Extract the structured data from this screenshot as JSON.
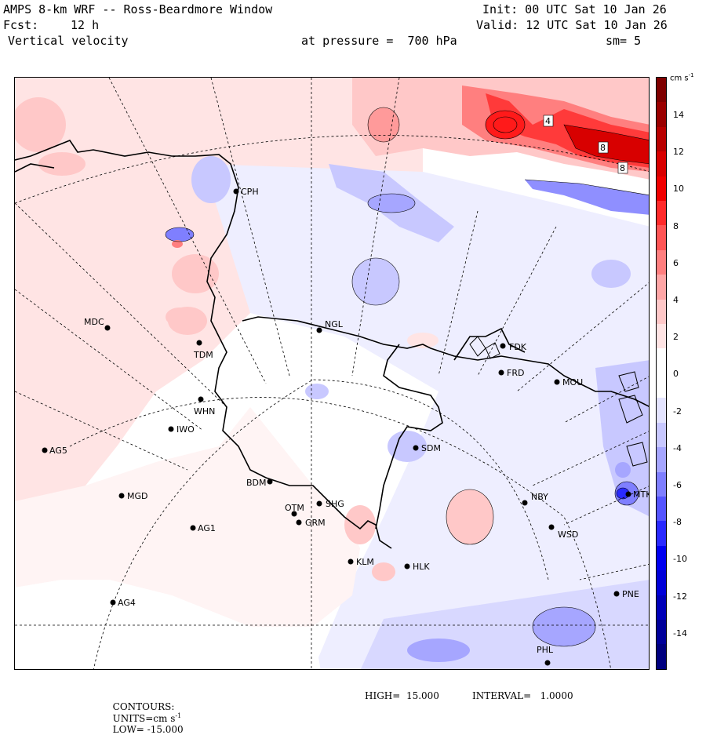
{
  "header": {
    "title": "AMPS 8-km WRF -- Ross-Beardmore Window",
    "forecast_label": "Fcst:",
    "forecast_hours": "12 h",
    "field": "Vertical velocity",
    "pressure_text": "at pressure =  700 hPa",
    "smoothing": "sm= 5",
    "init": "Init: 00 UTC Sat 10 Jan 26",
    "valid": "Valid: 12 UTC Sat 10 Jan 26"
  },
  "colorbar": {
    "units": "cm s",
    "units_exp": "-1",
    "ticks": [
      "14",
      "12",
      "10",
      "8",
      "6",
      "4",
      "2",
      "0",
      "-2",
      "-4",
      "-6",
      "-8",
      "-10",
      "-12",
      "-14"
    ],
    "colors": [
      "#7f0000",
      "#9a0000",
      "#b80000",
      "#d80000",
      "#f00000",
      "#ff2a2a",
      "#ff5555",
      "#ff7f7f",
      "#ffa6a6",
      "#ffc8c8",
      "#ffe4e4",
      "#ffffff",
      "#ffffff",
      "#e4e4ff",
      "#c8c8ff",
      "#a6a6ff",
      "#7f7fff",
      "#5555ff",
      "#2a2aff",
      "#0000f0",
      "#0000d8",
      "#0000b8",
      "#00009a",
      "#00007f"
    ]
  },
  "stations": [
    {
      "name": "CPH"
    },
    {
      "name": "NGL"
    },
    {
      "name": "MDC"
    },
    {
      "name": "TDM"
    },
    {
      "name": "WHN"
    },
    {
      "name": "IWO"
    },
    {
      "name": "AG5"
    },
    {
      "name": "FDK"
    },
    {
      "name": "FRD"
    },
    {
      "name": "MOU"
    },
    {
      "name": "SDM"
    },
    {
      "name": "BDM"
    },
    {
      "name": "MGD"
    },
    {
      "name": "SHG"
    },
    {
      "name": "OTM"
    },
    {
      "name": "GRM"
    },
    {
      "name": "AG1"
    },
    {
      "name": "NBY"
    },
    {
      "name": "MTK"
    },
    {
      "name": "WSD"
    },
    {
      "name": "KLM"
    },
    {
      "name": "HLK"
    },
    {
      "name": "PNE"
    },
    {
      "name": "AG4"
    },
    {
      "name": "PHL"
    }
  ],
  "contour_labels": [
    "4",
    "8",
    "8"
  ],
  "footer": {
    "contours_label": "CONTOURS:",
    "units_label": "UNITS=cm s",
    "units_exp": "-1",
    "low": "LOW= -15.000",
    "high": "HIGH=  15.000",
    "interval": "INTERVAL=   1.0000"
  }
}
